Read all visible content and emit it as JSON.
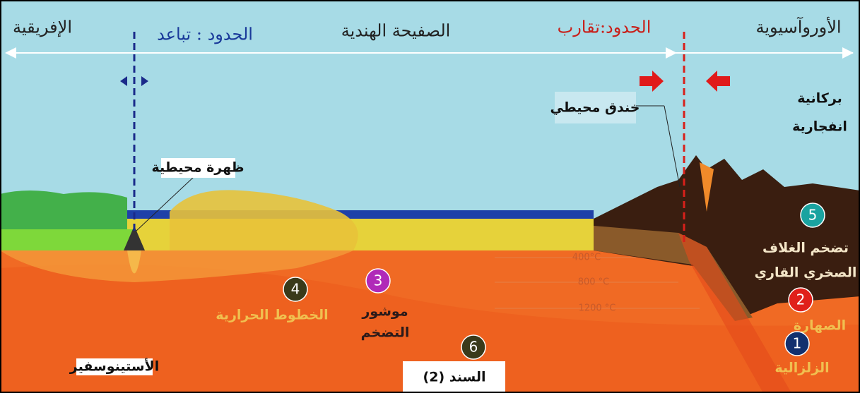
{
  "header": {
    "left_plate": "الإفريقية",
    "divergent_boundary": "الحدود : تباعد",
    "middle_plate": "الصفيحة الهندية",
    "convergent_boundary": "الحدود:تقارب",
    "right_plate": "الأوروآسيوية"
  },
  "labels": {
    "trench": "خندق محيطي",
    "volcanism": [
      "بركانية",
      "انفجارية"
    ],
    "ridge": "ظهرة محيطية",
    "thickening": [
      "تضخم الغلاف",
      "الصخري القاري"
    ],
    "isotherm_lines": "الخطوط الحرارية",
    "prism": [
      "موشور",
      "التضخم"
    ],
    "asthenosphere": "الأستينوسفير",
    "magma": "الصهارة",
    "seismic": "الزلزالية"
  },
  "isotherms": [
    "400°C",
    "800 °C",
    "1200 °C"
  ],
  "markers": [
    {
      "label": "5",
      "color": "#1aa3a0"
    },
    {
      "label": "4",
      "color": "#3a3a1a"
    },
    {
      "label": "3",
      "color": "#b02ab8"
    },
    {
      "label": "6",
      "color": "#3a3a1a"
    },
    {
      "label": "2",
      "color": "#e0201a"
    },
    {
      "label": "1",
      "color": "#13306e"
    }
  ],
  "caption": "السند (2)"
}
